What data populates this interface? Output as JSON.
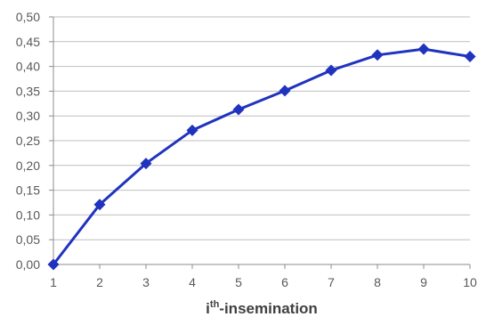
{
  "chart_data": {
    "type": "line",
    "title": "",
    "xlabel_main": "i",
    "xlabel_sup": "th",
    "xlabel_rest": "-insemination",
    "ylabel": "",
    "x": [
      1,
      2,
      3,
      4,
      5,
      6,
      7,
      8,
      9,
      10
    ],
    "x_tick_labels": [
      "1",
      "2",
      "3",
      "4",
      "5",
      "6",
      "7",
      "8",
      "9",
      "10"
    ],
    "series": [
      {
        "values": [
          0.0,
          0.121,
          0.204,
          0.271,
          0.313,
          0.351,
          0.392,
          0.423,
          0.435,
          0.42
        ],
        "color": "#1f33bf",
        "marker": "diamond"
      }
    ],
    "ylim": [
      0,
      0.5
    ],
    "y_ticks": [
      0,
      0.05,
      0.1,
      0.15,
      0.2,
      0.25,
      0.3,
      0.35,
      0.4,
      0.45,
      0.5
    ],
    "y_tick_labels": [
      "0,00",
      "0,05",
      "0,10",
      "0,15",
      "0,20",
      "0,25",
      "0,30",
      "0,35",
      "0,40",
      "0,45",
      "0,50"
    ],
    "grid": "horizontal",
    "legend": "none",
    "colors": {
      "series": "#1f33bf",
      "grid": "#bfbfbf",
      "axis": "#8c8c8c",
      "tick_text": "#595959"
    }
  }
}
